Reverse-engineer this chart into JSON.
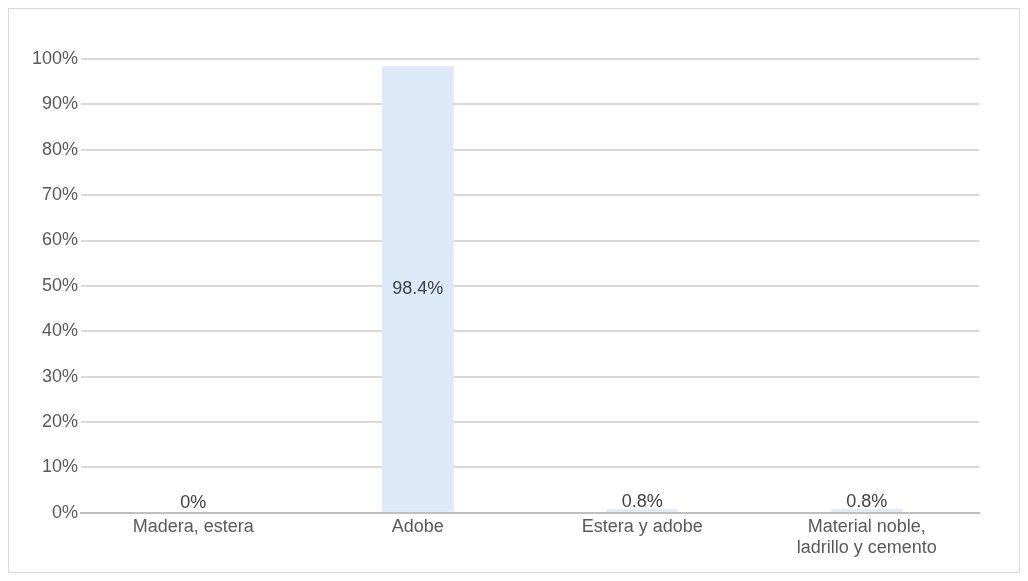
{
  "chart_data": {
    "type": "bar",
    "categories": [
      "Madera, estera",
      "Adobe",
      "Estera y adobe",
      "Material noble, ladrillo y cemento"
    ],
    "values": [
      0,
      98.4,
      0.8,
      0.8
    ],
    "value_labels": [
      "0%",
      "98.4%",
      "0.8%",
      "0.8%"
    ],
    "color": "#dce9f8",
    "ylim": [
      0,
      100
    ],
    "yticks": [
      {
        "value": 0,
        "label": "0%"
      },
      {
        "value": 10,
        "label": "10%"
      },
      {
        "value": 20,
        "label": "20%"
      },
      {
        "value": 30,
        "label": "30%"
      },
      {
        "value": 40,
        "label": "40%"
      },
      {
        "value": 50,
        "label": "50%"
      },
      {
        "value": 60,
        "label": "60%"
      },
      {
        "value": 70,
        "label": "70%"
      },
      {
        "value": 80,
        "label": "80%"
      },
      {
        "value": 90,
        "label": "90%"
      },
      {
        "value": 100,
        "label": "100%"
      }
    ],
    "grid": "y",
    "legend": false
  }
}
